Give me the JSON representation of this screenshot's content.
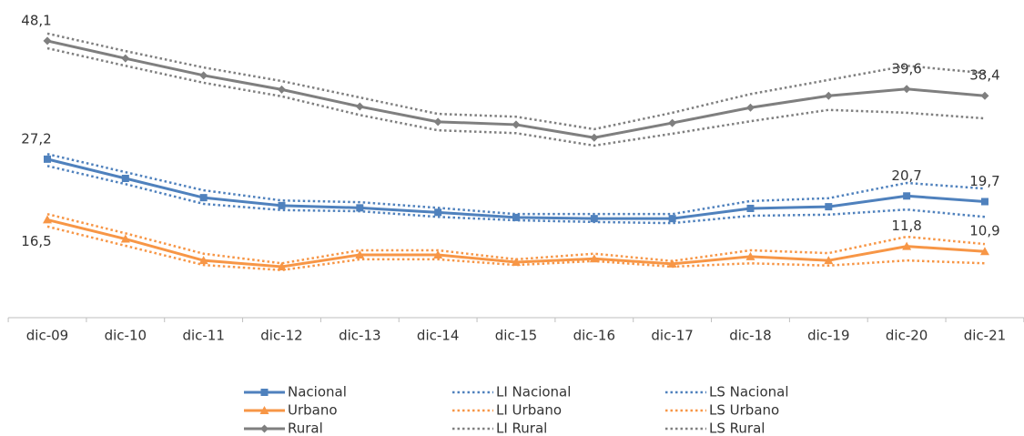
{
  "chart_data": {
    "type": "line",
    "categories": [
      "dic-09",
      "dic-10",
      "dic-11",
      "dic-12",
      "dic-13",
      "dic-14",
      "dic-15",
      "dic-16",
      "dic-17",
      "dic-18",
      "dic-19",
      "dic-20",
      "dic-21"
    ],
    "ylim": [
      0,
      55
    ],
    "legend": "bottom",
    "series": [
      {
        "name": "Nacional",
        "color": "#4f81bd",
        "dash": "solid",
        "marker": "square",
        "values": [
          27.2,
          23.8,
          20.4,
          19.0,
          18.6,
          17.8,
          16.9,
          16.7,
          16.7,
          18.5,
          18.8,
          20.7,
          19.7
        ],
        "value_labels": [
          "27,2",
          null,
          null,
          null,
          null,
          null,
          null,
          null,
          null,
          null,
          null,
          "20,7",
          "19,7"
        ]
      },
      {
        "name": "LI Nacional",
        "color": "#4f81bd",
        "dash": "dotted",
        "values": [
          26.0,
          22.8,
          19.3,
          18.2,
          18.0,
          17.0,
          16.4,
          16.1,
          15.9,
          17.2,
          17.4,
          18.3,
          17.0
        ]
      },
      {
        "name": "LS Nacional",
        "color": "#4f81bd",
        "dash": "dotted",
        "values": [
          28.1,
          24.9,
          21.7,
          19.9,
          19.6,
          18.6,
          17.5,
          17.5,
          17.5,
          19.8,
          20.3,
          23.0,
          22.0
        ]
      },
      {
        "name": "Urbano",
        "color": "#f79646",
        "dash": "solid",
        "marker": "triangle",
        "values": [
          16.5,
          13.1,
          9.3,
          8.2,
          10.3,
          10.3,
          9.0,
          9.6,
          8.7,
          10.0,
          9.3,
          11.8,
          10.9
        ],
        "value_labels": [
          "16,5",
          null,
          null,
          null,
          null,
          null,
          null,
          null,
          null,
          null,
          null,
          "11,8",
          "10,9"
        ]
      },
      {
        "name": "LI Urbano",
        "color": "#f79646",
        "dash": "dotted",
        "values": [
          15.3,
          11.9,
          8.5,
          7.6,
          9.5,
          9.5,
          8.5,
          9.2,
          8.2,
          8.8,
          8.4,
          9.3,
          8.8
        ]
      },
      {
        "name": "LS Urbano",
        "color": "#f79646",
        "dash": "dotted",
        "values": [
          17.5,
          14.1,
          10.5,
          8.8,
          11.1,
          11.1,
          9.5,
          10.5,
          9.2,
          11.1,
          10.6,
          13.5,
          12.2
        ]
      },
      {
        "name": "Rural",
        "color": "#7f7f7f",
        "dash": "solid",
        "marker": "diamond",
        "values": [
          48.1,
          45.0,
          42.0,
          39.5,
          36.5,
          33.8,
          33.3,
          31.0,
          33.6,
          36.3,
          38.4,
          39.6,
          38.4
        ],
        "value_labels": [
          "48,1",
          null,
          null,
          null,
          null,
          null,
          null,
          null,
          null,
          null,
          null,
          "39,6",
          "38,4"
        ]
      },
      {
        "name": "LI Rural",
        "color": "#7f7f7f",
        "dash": "dotted",
        "values": [
          46.8,
          43.7,
          40.7,
          38.3,
          35.0,
          32.3,
          31.8,
          29.6,
          31.7,
          33.9,
          35.9,
          35.4,
          34.4
        ]
      },
      {
        "name": "LS Rural",
        "color": "#7f7f7f",
        "dash": "dotted",
        "values": [
          49.4,
          46.3,
          43.4,
          41.0,
          38.1,
          35.2,
          34.7,
          32.5,
          35.4,
          38.7,
          41.2,
          43.7,
          42.4
        ]
      }
    ]
  }
}
